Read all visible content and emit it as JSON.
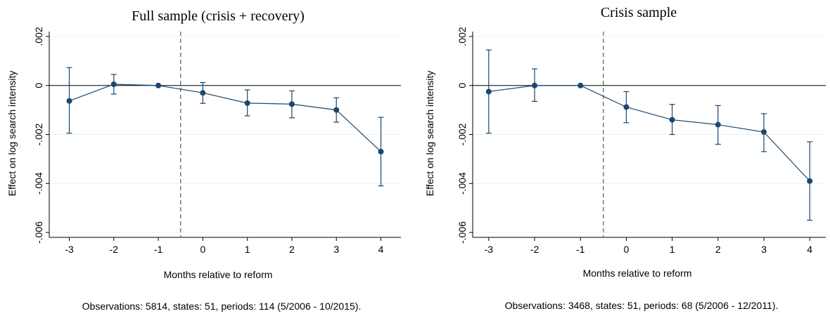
{
  "chart_data": [
    {
      "type": "scatter",
      "title": "Full sample (crisis + recovery)",
      "xlabel": "Months relative to reform",
      "ylabel": "Effect on log search intensity",
      "note": "Observations: 5814, states: 51, periods: 114 (5/2006 - 10/2015).",
      "x": [
        -3,
        -2,
        -1,
        0,
        1,
        2,
        3,
        4
      ],
      "x_tick_labels": [
        "-3",
        "-2",
        "-1",
        "0",
        "1",
        "2",
        "3",
        "4"
      ],
      "y": [
        -0.00063,
        5e-05,
        0.0,
        -0.0003,
        -0.00072,
        -0.00076,
        -0.001,
        -0.0027
      ],
      "ci_lower": [
        -0.00195,
        -0.00035,
        0.0,
        -0.00073,
        -0.00124,
        -0.00132,
        -0.0015,
        -0.0041
      ],
      "ci_upper": [
        0.00073,
        0.00045,
        0.0,
        0.00012,
        -0.00018,
        -0.00022,
        -0.0005,
        -0.0013
      ],
      "ylim": [
        -0.0062,
        0.0022
      ],
      "y_ticks": [
        0.002,
        0,
        -0.002,
        -0.004,
        -0.006
      ],
      "y_tick_labels": [
        ".002",
        "0",
        "-.002",
        "-.004",
        "-.006"
      ],
      "reference_line_x": -0.5,
      "zero_line": true,
      "grid": true
    },
    {
      "type": "scatter",
      "title": "Crisis sample",
      "xlabel": "Months relative to reform",
      "ylabel": "Effect on log search intensity",
      "note": "Observations: 3468, states: 51, periods: 68 (5/2006 - 12/2011).",
      "x": [
        -3,
        -2,
        -1,
        0,
        1,
        2,
        3,
        4
      ],
      "x_tick_labels": [
        "-3",
        "-2",
        "-1",
        "0",
        "1",
        "2",
        "3",
        "4"
      ],
      "y": [
        -0.00025,
        0.0,
        0.0,
        -0.00088,
        -0.0014,
        -0.0016,
        -0.0019,
        -0.0039
      ],
      "ci_lower": [
        -0.00195,
        -0.00065,
        0.0,
        -0.00152,
        -0.002,
        -0.0024,
        -0.0027,
        -0.0055
      ],
      "ci_upper": [
        0.00145,
        0.00068,
        0.0,
        -0.00025,
        -0.00077,
        -0.00082,
        -0.00115,
        -0.0023
      ],
      "ylim": [
        -0.0062,
        0.0022
      ],
      "y_ticks": [
        0.002,
        0,
        -0.002,
        -0.004,
        -0.006
      ],
      "y_tick_labels": [
        ".002",
        "0",
        "-.002",
        "-.004",
        "-.006"
      ],
      "reference_line_x": -0.5,
      "zero_line": true,
      "grid": true
    }
  ],
  "colors": {
    "series": "#1a476f",
    "grid": "#eaf2f3",
    "axis": "#000000",
    "reference_line": "#666666"
  }
}
